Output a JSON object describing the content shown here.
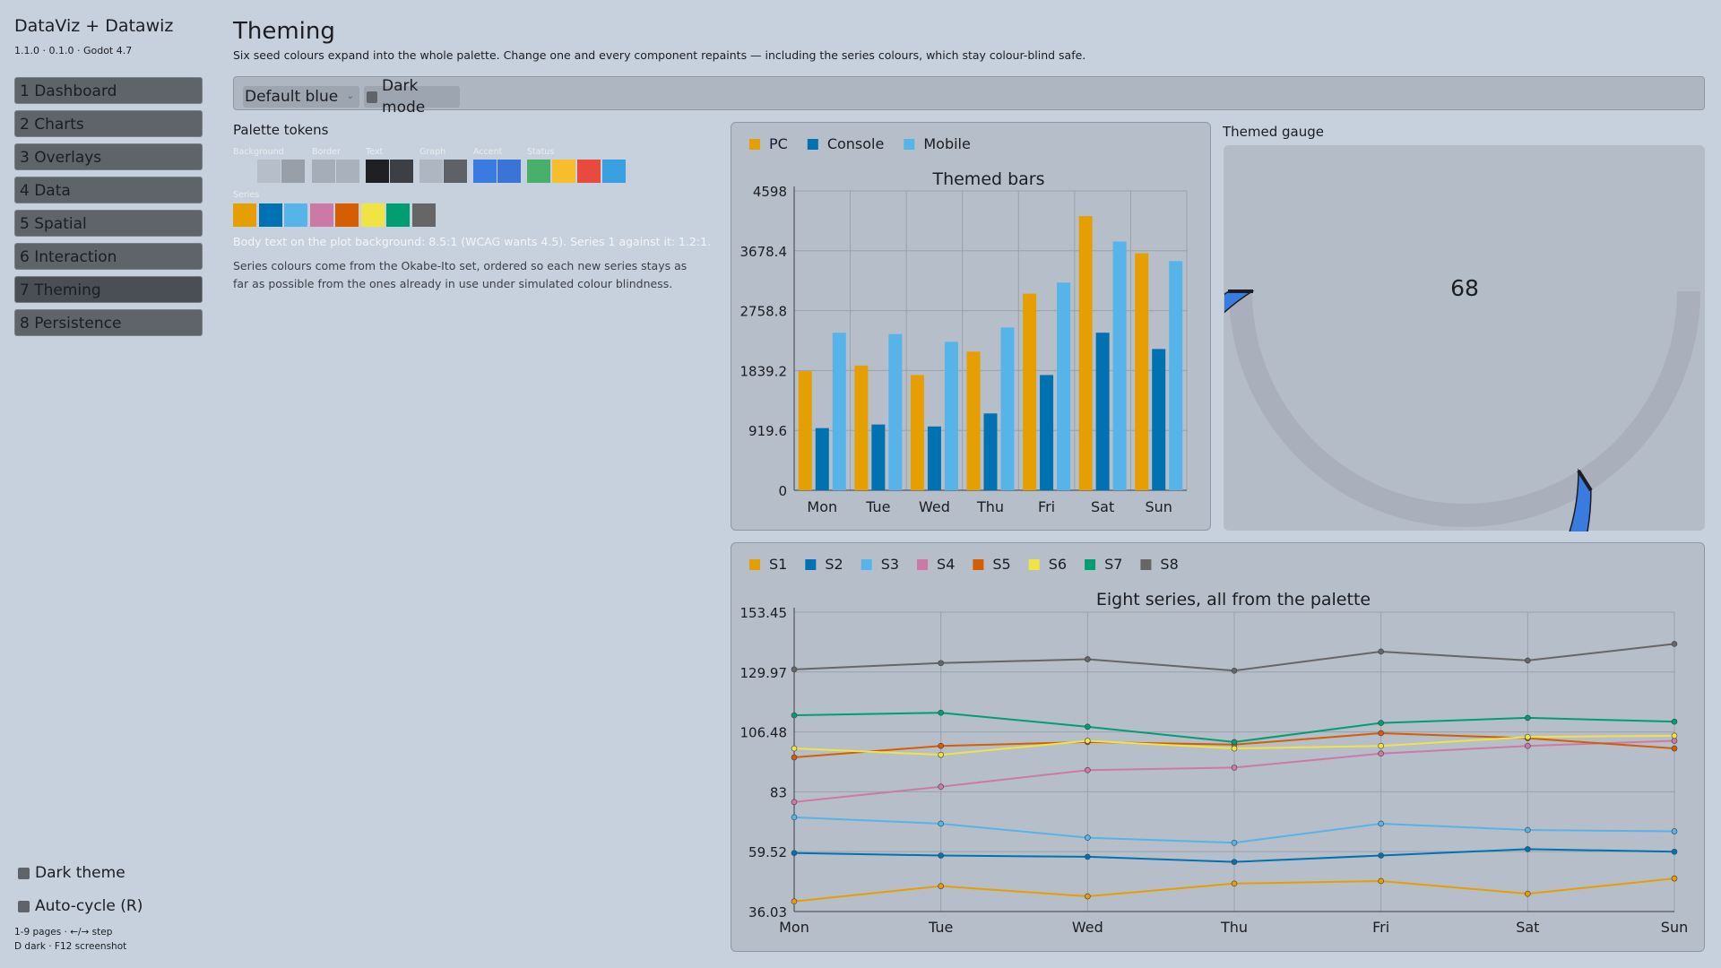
{
  "app": {
    "title": "DataViz + Datawiz",
    "version": "1.1.0 · 0.1.0 · Godot 4.7"
  },
  "sidebar": {
    "items": [
      {
        "label": "1  Dashboard"
      },
      {
        "label": "2  Charts"
      },
      {
        "label": "3  Overlays"
      },
      {
        "label": "4  Data"
      },
      {
        "label": "5  Spatial"
      },
      {
        "label": "6  Interaction"
      },
      {
        "label": "7  Theming",
        "active": true
      },
      {
        "label": "8  Persistence"
      }
    ],
    "dark_theme_label": "Dark theme",
    "auto_cycle_label": "Auto-cycle (R)",
    "hint1": "1-9 pages · ←/→ step",
    "hint2": "D dark · F12 screenshot"
  },
  "page": {
    "title": "Theming",
    "subtitle": "Six seed colours expand into the whole palette. Change one and every component repaints — including the series colours, which stay colour-blind safe."
  },
  "toolbar": {
    "preset_value": "Default blue",
    "dark_mode_label": "Dark mode"
  },
  "palette": {
    "title": "Palette tokens",
    "groups": [
      {
        "label": "Background",
        "colors": [
          "#c7d1dd",
          "#b6bec9",
          "#999fa9"
        ]
      },
      {
        "label": "Border",
        "colors": [
          "#a5adb8",
          "#a9b1bc"
        ]
      },
      {
        "label": "Text",
        "colors": [
          "#1e2024",
          "#3c3f45"
        ]
      },
      {
        "label": "Graph",
        "colors": [
          "#aeb6c2",
          "#5e6168"
        ]
      },
      {
        "label": "Accent",
        "colors": [
          "#3a7be0",
          "#3a74d6"
        ]
      },
      {
        "label": "Status",
        "colors": [
          "#48b06a",
          "#f8bd2c",
          "#e84a3d",
          "#3aa0e2"
        ]
      }
    ],
    "series_label": "Series",
    "series_colors": [
      "#e69f00",
      "#0072b2",
      "#56b4e9",
      "#cc79a7",
      "#d55e00",
      "#f0e442",
      "#009e73",
      "#666666"
    ],
    "contrast_note": "Body text on the plot background: 8.5:1 (WCAG wants 4.5). Series 1 against it: 1.2:1.",
    "okabe_note": "Series colours come from the Okabe-Ito set, ordered so each new series stays as far as possible from the ones already in use under simulated colour blindness."
  },
  "gauge": {
    "title": "Themed gauge",
    "value": 68,
    "min": 0,
    "max": 100,
    "fill_color": "#3a7be0",
    "track_color": "#a9b0bb"
  },
  "chart_data": [
    {
      "type": "bar",
      "title": "Themed bars",
      "categories": [
        "Mon",
        "Tue",
        "Wed",
        "Thu",
        "Fri",
        "Sat",
        "Sun"
      ],
      "series": [
        {
          "name": "PC",
          "color": "#e69f00",
          "values": [
            1830,
            1915,
            1770,
            2130,
            3020,
            4210,
            3640
          ]
        },
        {
          "name": "Console",
          "color": "#0072b2",
          "values": [
            955,
            1010,
            980,
            1180,
            1770,
            2420,
            2170
          ]
        },
        {
          "name": "Mobile",
          "color": "#56b4e9",
          "values": [
            2420,
            2400,
            2280,
            2500,
            3190,
            3820,
            3520
          ]
        }
      ],
      "ylim": [
        0,
        4598
      ],
      "yticks": [
        "0",
        "919.6",
        "1839.2",
        "2758.8",
        "3678.4",
        "4598"
      ],
      "legend": "top-left"
    },
    {
      "type": "line",
      "title": "Eight series, all from the palette",
      "categories": [
        "Mon",
        "Tue",
        "Wed",
        "Thu",
        "Fri",
        "Sat",
        "Sun"
      ],
      "series": [
        {
          "name": "S1",
          "color": "#e69f00",
          "values": [
            40,
            46,
            42,
            47,
            48,
            43,
            49
          ]
        },
        {
          "name": "S2",
          "color": "#0072b2",
          "values": [
            59,
            58,
            57.5,
            55.5,
            58,
            60.5,
            59.5
          ]
        },
        {
          "name": "S3",
          "color": "#56b4e9",
          "values": [
            73,
            70.5,
            65,
            63,
            70.5,
            68,
            67.5
          ]
        },
        {
          "name": "S4",
          "color": "#cc79a7",
          "values": [
            79,
            85,
            91.5,
            92.5,
            98,
            101,
            103
          ]
        },
        {
          "name": "S5",
          "color": "#d55e00",
          "values": [
            96.5,
            101,
            102.5,
            101.5,
            106,
            104,
            100
          ]
        },
        {
          "name": "S6",
          "color": "#f0e442",
          "values": [
            100,
            97.5,
            103,
            100,
            101,
            104.5,
            105
          ]
        },
        {
          "name": "S7",
          "color": "#009e73",
          "values": [
            113,
            114,
            108.5,
            102.5,
            110,
            112,
            110.5
          ]
        },
        {
          "name": "S8",
          "color": "#666666",
          "values": [
            131,
            133.5,
            135,
            130.5,
            138,
            134.5,
            141
          ]
        }
      ],
      "ylim": [
        36.03,
        153.45
      ],
      "yticks": [
        "36.03",
        "59.52",
        "83",
        "106.48",
        "129.97",
        "153.45"
      ],
      "legend": "top-left"
    }
  ]
}
